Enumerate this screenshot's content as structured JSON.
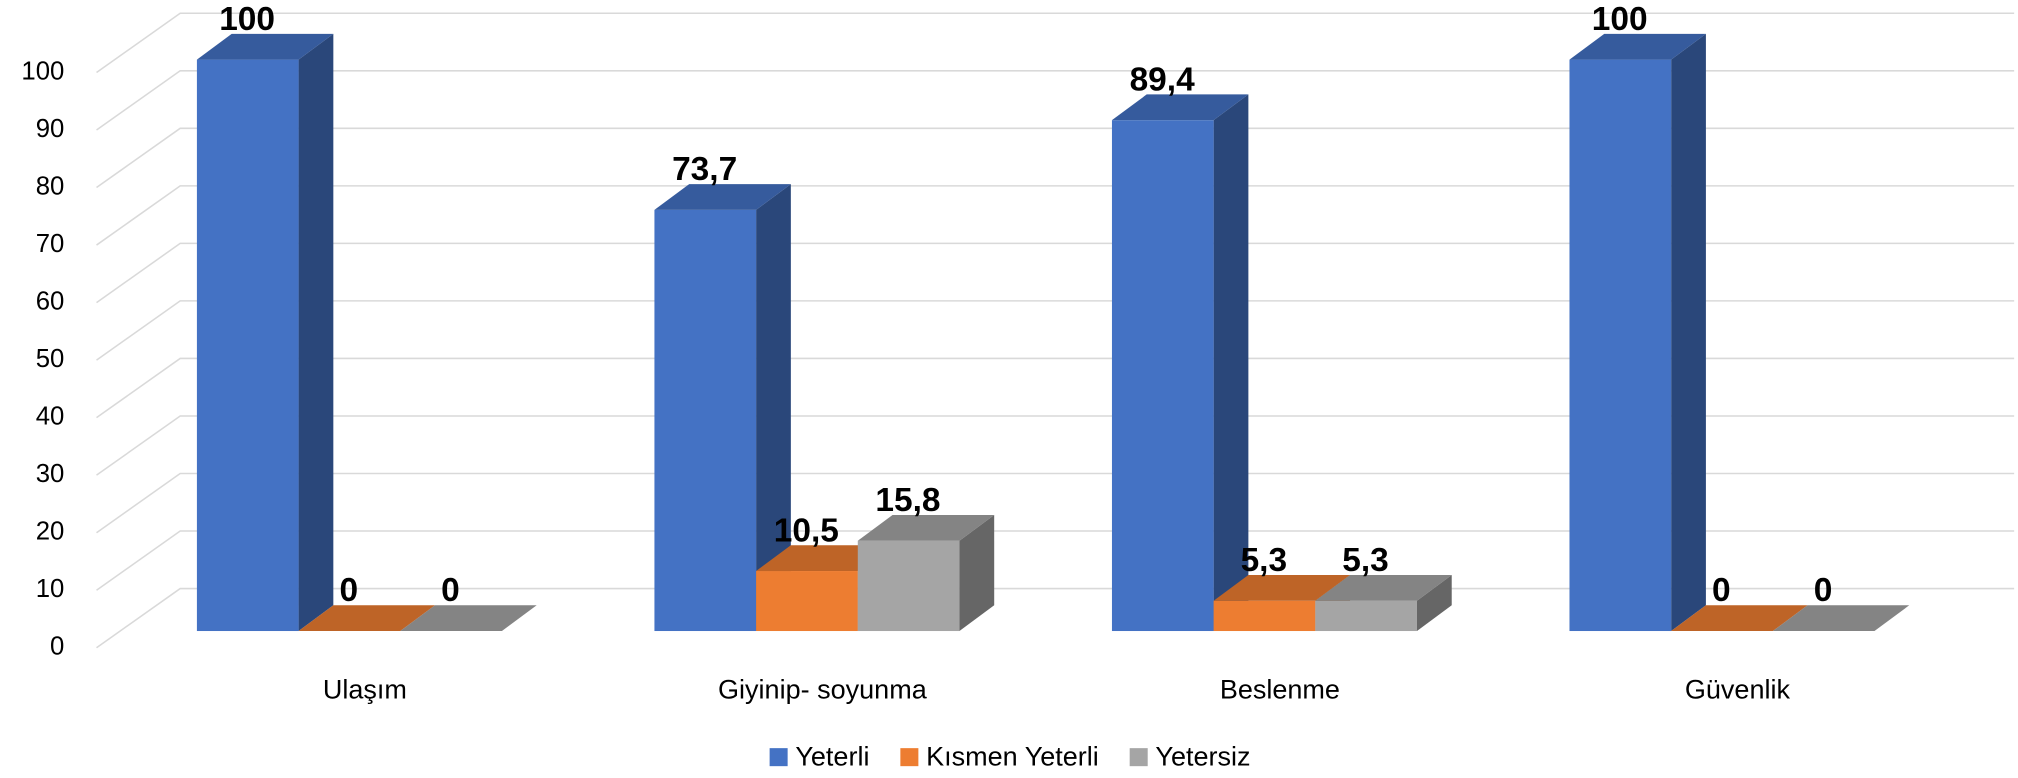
{
  "chart_data": {
    "type": "bar3d",
    "categories": [
      "Ulaşım",
      "Giyinip- soyunma",
      "Beslenme",
      "Güvenlik"
    ],
    "series": [
      {
        "name": "Yeterli",
        "color": "#4472c4",
        "values": [
          100,
          73.7,
          89.4,
          100
        ],
        "value_labels": [
          "100",
          "73,7",
          "89,4",
          "100"
        ]
      },
      {
        "name": "Kısmen Yeterli",
        "color": "#ed7d31",
        "values": [
          0,
          10.5,
          5.3,
          0
        ],
        "value_labels": [
          "0",
          "10,5",
          "5,3",
          "0"
        ]
      },
      {
        "name": "Yetersiz",
        "color": "#a5a5a5",
        "values": [
          0,
          15.8,
          5.3,
          0
        ],
        "value_labels": [
          "0",
          "15,8",
          "5,3",
          "0"
        ]
      }
    ],
    "ylim": [
      0,
      100
    ],
    "yticks": [
      0,
      10,
      20,
      30,
      40,
      50,
      60,
      70,
      80,
      90,
      100
    ],
    "grid": true,
    "legend": "bottom"
  }
}
